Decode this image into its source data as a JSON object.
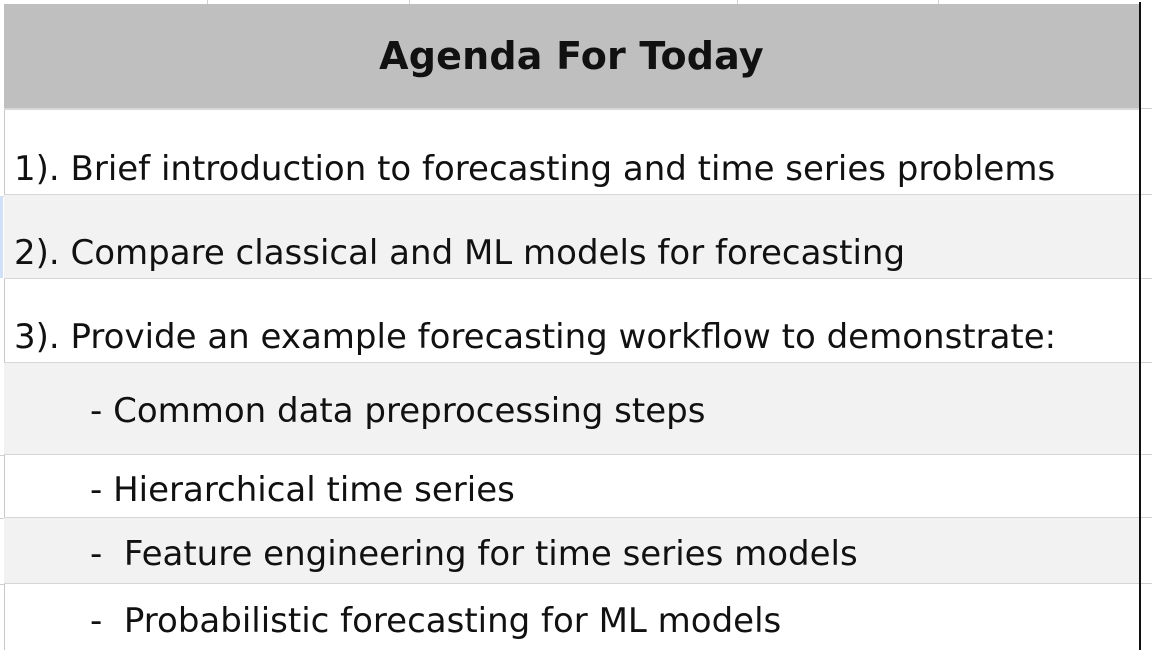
{
  "agenda": {
    "title": "Agenda For Today",
    "items": [
      "1). Brief introduction to forecasting and time series problems",
      "2). Compare classical and ML models for forecasting",
      "3). Provide an example forecasting workflow to demonstrate:",
      "- Common data preprocessing steps",
      "- Hierarchical time series",
      "-  Feature engineering for time series models",
      "-  Probabilistic forecasting for ML models"
    ]
  }
}
